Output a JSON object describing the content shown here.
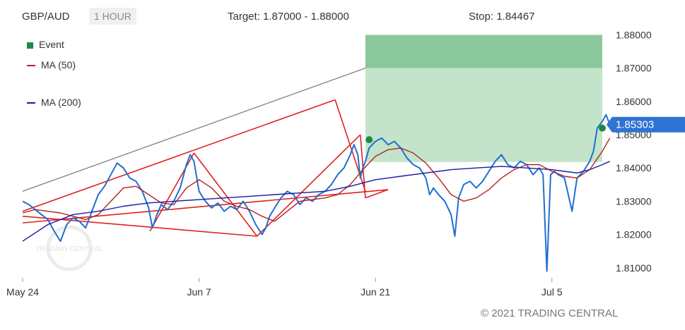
{
  "header": {
    "symbol": "GBP/AUD",
    "timeframe": "1 HOUR",
    "target": "Target: 1.87000 - 1.88000",
    "stop": "Stop: 1.84467"
  },
  "legend": [
    {
      "label": "Event",
      "color": "#1e8a45",
      "shape": "square"
    },
    {
      "label": "MA (50)",
      "color": "#b22222",
      "shape": "line"
    },
    {
      "label": "MA (200)",
      "color": "#1a1aa6",
      "shape": "line"
    }
  ],
  "copyright": "© 2021 TRADING CENTRAL",
  "watermark": "TRADING CENTRAL",
  "chart_data": {
    "type": "line",
    "x_tick_labels": [
      "May 24",
      "Jun 7",
      "Jun 21",
      "Jul 5"
    ],
    "x_tick_days": [
      0,
      14,
      28,
      42
    ],
    "x_range_days": [
      0,
      46
    ],
    "y_tick_labels": [
      "1.88000",
      "1.87000",
      "1.86000",
      "1.85000",
      "1.84000",
      "1.83000",
      "1.82000",
      "1.81000"
    ],
    "ylim": [
      1.807,
      1.882
    ],
    "current_price": "1.85303",
    "target_zone": {
      "start_day": 27.2,
      "low": 1.87,
      "high": 1.88
    },
    "profit_zone": {
      "start_day": 27.2,
      "low": 1.8418,
      "high": 1.87
    },
    "series": [
      {
        "name": "GBP/AUD",
        "color": "#1f6fd1",
        "points": [
          [
            0,
            1.83
          ],
          [
            0.5,
            1.829
          ],
          [
            1,
            1.8275
          ],
          [
            1.5,
            1.826
          ],
          [
            2,
            1.8245
          ],
          [
            2.5,
            1.821
          ],
          [
            3,
            1.818
          ],
          [
            3.5,
            1.823
          ],
          [
            4,
            1.825
          ],
          [
            4.5,
            1.824
          ],
          [
            5,
            1.822
          ],
          [
            5.5,
            1.827
          ],
          [
            6,
            1.832
          ],
          [
            6.5,
            1.8345
          ],
          [
            7,
            1.838
          ],
          [
            7.5,
            1.8415
          ],
          [
            8,
            1.84
          ],
          [
            8.5,
            1.837
          ],
          [
            9,
            1.836
          ],
          [
            9.5,
            1.833
          ],
          [
            10,
            1.828
          ],
          [
            10.3,
            1.822
          ],
          [
            10.6,
            1.8255
          ],
          [
            11,
            1.829
          ],
          [
            11.5,
            1.8275
          ],
          [
            12,
            1.83
          ],
          [
            12.5,
            1.834
          ],
          [
            13,
            1.841
          ],
          [
            13.3,
            1.844
          ],
          [
            13.6,
            1.842
          ],
          [
            14,
            1.833
          ],
          [
            14.5,
            1.83
          ],
          [
            15,
            1.828
          ],
          [
            15.5,
            1.8295
          ],
          [
            16,
            1.827
          ],
          [
            16.5,
            1.8285
          ],
          [
            17,
            1.8275
          ],
          [
            17.5,
            1.83
          ],
          [
            18,
            1.827
          ],
          [
            18.5,
            1.823
          ],
          [
            19,
            1.82
          ],
          [
            19.3,
            1.822
          ],
          [
            19.6,
            1.8255
          ],
          [
            20,
            1.828
          ],
          [
            20.5,
            1.831
          ],
          [
            21,
            1.833
          ],
          [
            21.5,
            1.832
          ],
          [
            22,
            1.829
          ],
          [
            22.5,
            1.831
          ],
          [
            23,
            1.83
          ],
          [
            23.5,
            1.832
          ],
          [
            24,
            1.833
          ],
          [
            24.5,
            1.835
          ],
          [
            25,
            1.838
          ],
          [
            25.5,
            1.84
          ],
          [
            26,
            1.844
          ],
          [
            26.3,
            1.847
          ],
          [
            26.6,
            1.844
          ],
          [
            26.8,
            1.837
          ],
          [
            27,
            1.84
          ],
          [
            27.2,
            1.842
          ],
          [
            27.5,
            1.846
          ],
          [
            28,
            1.848
          ],
          [
            28.5,
            1.849
          ],
          [
            29,
            1.847
          ],
          [
            29.5,
            1.848
          ],
          [
            30,
            1.846
          ],
          [
            30.5,
            1.843
          ],
          [
            31,
            1.841
          ],
          [
            31.5,
            1.84
          ],
          [
            32,
            1.837
          ],
          [
            32.3,
            1.832
          ],
          [
            32.6,
            1.834
          ],
          [
            33,
            1.832
          ],
          [
            33.5,
            1.83
          ],
          [
            34,
            1.826
          ],
          [
            34.3,
            1.8195
          ],
          [
            34.6,
            1.831
          ],
          [
            35,
            1.835
          ],
          [
            35.5,
            1.836
          ],
          [
            36,
            1.834
          ],
          [
            36.5,
            1.836
          ],
          [
            37,
            1.839
          ],
          [
            37.5,
            1.842
          ],
          [
            38,
            1.844
          ],
          [
            38.5,
            1.841
          ],
          [
            39,
            1.84
          ],
          [
            39.5,
            1.842
          ],
          [
            40,
            1.841
          ],
          [
            40.5,
            1.838
          ],
          [
            41,
            1.84
          ],
          [
            41.3,
            1.838
          ],
          [
            41.6,
            1.809
          ],
          [
            41.9,
            1.838
          ],
          [
            42.2,
            1.839
          ],
          [
            42.5,
            1.838
          ],
          [
            43,
            1.837
          ],
          [
            43.3,
            1.832
          ],
          [
            43.6,
            1.827
          ],
          [
            44,
            1.837
          ],
          [
            44.5,
            1.839
          ],
          [
            45,
            1.842
          ],
          [
            45.3,
            1.845
          ],
          [
            45.6,
            1.852
          ],
          [
            46,
            1.854
          ],
          [
            46.3,
            1.856
          ],
          [
            46.6,
            1.853
          ]
        ]
      },
      {
        "name": "MA (50)",
        "color": "#b22222",
        "points": [
          [
            0,
            1.8265
          ],
          [
            1,
            1.8275
          ],
          [
            2,
            1.827
          ],
          [
            3,
            1.8265
          ],
          [
            4,
            1.8255
          ],
          [
            5,
            1.8245
          ],
          [
            6,
            1.826
          ],
          [
            7,
            1.83
          ],
          [
            8,
            1.834
          ],
          [
            9,
            1.8345
          ],
          [
            10,
            1.832
          ],
          [
            11,
            1.8295
          ],
          [
            12,
            1.829
          ],
          [
            13,
            1.834
          ],
          [
            14,
            1.8365
          ],
          [
            15,
            1.834
          ],
          [
            16,
            1.83
          ],
          [
            17,
            1.8285
          ],
          [
            18,
            1.8275
          ],
          [
            19,
            1.8255
          ],
          [
            20,
            1.824
          ],
          [
            21,
            1.827
          ],
          [
            22,
            1.83
          ],
          [
            23,
            1.8305
          ],
          [
            24,
            1.831
          ],
          [
            25,
            1.832
          ],
          [
            26,
            1.835
          ],
          [
            27,
            1.8395
          ],
          [
            28,
            1.8435
          ],
          [
            29,
            1.8455
          ],
          [
            30,
            1.846
          ],
          [
            31,
            1.8445
          ],
          [
            32,
            1.8415
          ],
          [
            33,
            1.837
          ],
          [
            34,
            1.832
          ],
          [
            35,
            1.83
          ],
          [
            36,
            1.831
          ],
          [
            37,
            1.8335
          ],
          [
            38,
            1.837
          ],
          [
            39,
            1.8395
          ],
          [
            40,
            1.841
          ],
          [
            41,
            1.841
          ],
          [
            42,
            1.839
          ],
          [
            43,
            1.8375
          ],
          [
            44,
            1.837
          ],
          [
            45,
            1.8395
          ],
          [
            46,
            1.845
          ],
          [
            46.6,
            1.849
          ]
        ]
      },
      {
        "name": "MA (200)",
        "color": "#1a1aa6",
        "points": [
          [
            0,
            1.818
          ],
          [
            2,
            1.823
          ],
          [
            4,
            1.826
          ],
          [
            6,
            1.827
          ],
          [
            8,
            1.8285
          ],
          [
            10,
            1.8295
          ],
          [
            12,
            1.83
          ],
          [
            14,
            1.8305
          ],
          [
            16,
            1.831
          ],
          [
            18,
            1.8315
          ],
          [
            20,
            1.832
          ],
          [
            22,
            1.8325
          ],
          [
            24,
            1.833
          ],
          [
            26,
            1.8345
          ],
          [
            28,
            1.8365
          ],
          [
            30,
            1.8375
          ],
          [
            32,
            1.8385
          ],
          [
            34,
            1.8395
          ],
          [
            36,
            1.84
          ],
          [
            38,
            1.8405
          ],
          [
            40,
            1.84
          ],
          [
            42,
            1.8395
          ],
          [
            43,
            1.839
          ],
          [
            44,
            1.8385
          ],
          [
            45,
            1.8395
          ],
          [
            46,
            1.841
          ],
          [
            46.6,
            1.842
          ]
        ]
      }
    ],
    "events": [
      [
        27.5,
        1.8485
      ],
      [
        46.0,
        1.852
      ]
    ],
    "pattern_lines": [
      {
        "color": "#e02020",
        "from": [
          0,
          1.8255
        ],
        "to": [
          18.6,
          1.8195
        ]
      },
      {
        "color": "#e02020",
        "from": [
          0,
          1.827
        ],
        "to": [
          24.8,
          1.8605
        ]
      },
      {
        "color": "#e02020",
        "from": [
          24.8,
          1.8605
        ],
        "to": [
          27.2,
          1.833
        ]
      },
      {
        "color": "#e02020",
        "from": [
          10.1,
          1.821
        ],
        "to": [
          13.6,
          1.8445
        ]
      },
      {
        "color": "#e02020",
        "from": [
          13.6,
          1.8445
        ],
        "to": [
          18.6,
          1.8195
        ]
      },
      {
        "color": "#e02020",
        "from": [
          18.6,
          1.8195
        ],
        "to": [
          26.8,
          1.85
        ]
      },
      {
        "color": "#e02020",
        "from": [
          26.8,
          1.85
        ],
        "to": [
          27.2,
          1.831
        ]
      },
      {
        "color": "#e02020",
        "from": [
          27.2,
          1.831
        ],
        "to": [
          29.0,
          1.8335
        ]
      },
      {
        "color": "#e02020",
        "from": [
          0,
          1.8235
        ],
        "to": [
          29.0,
          1.8335
        ]
      },
      {
        "color": "#808080",
        "from": [
          0,
          1.833
        ],
        "to": [
          27.2,
          1.87
        ]
      }
    ]
  }
}
